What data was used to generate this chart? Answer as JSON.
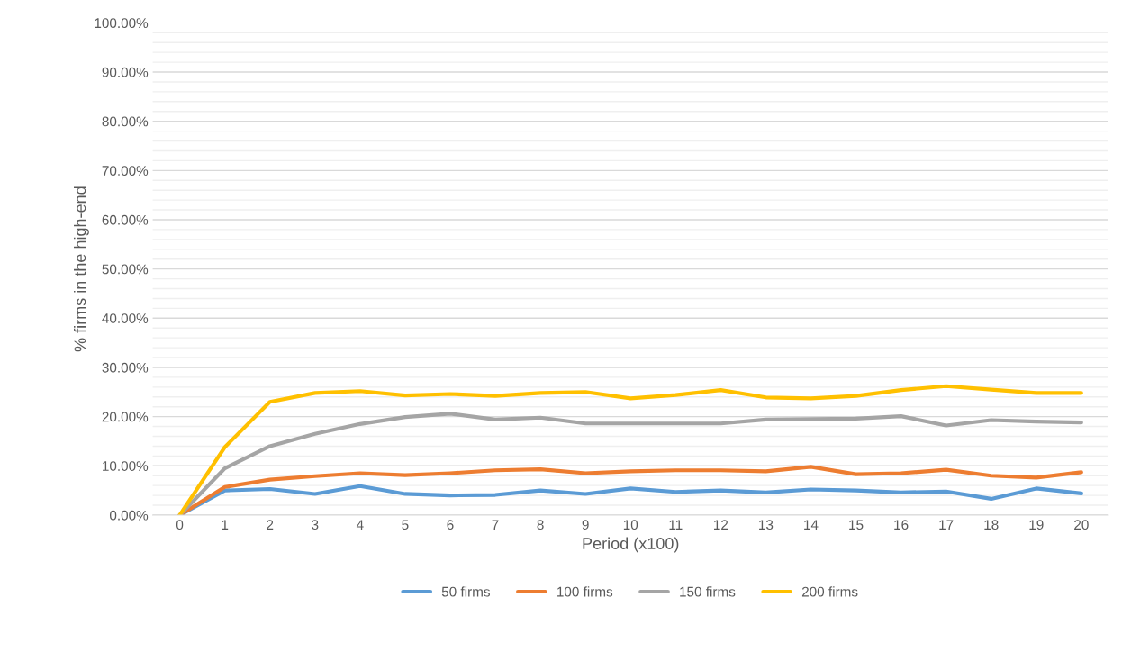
{
  "chart_data": {
    "type": "line",
    "xlabel": "Period (x100)",
    "ylabel": "% firms in the high-end",
    "categories": [
      "0",
      "1",
      "2",
      "3",
      "4",
      "5",
      "6",
      "7",
      "8",
      "9",
      "10",
      "11",
      "12",
      "13",
      "14",
      "15",
      "16",
      "17",
      "18",
      "19",
      "20"
    ],
    "series": [
      {
        "name": "50 firms",
        "color": "#5b9bd5",
        "values": [
          0,
          5.0,
          5.3,
          4.3,
          5.9,
          4.3,
          4.0,
          4.1,
          5.0,
          4.3,
          5.4,
          4.7,
          5.0,
          4.6,
          5.2,
          5.0,
          4.6,
          4.8,
          3.3,
          5.4,
          4.4
        ]
      },
      {
        "name": "100 firms",
        "color": "#ed7d31",
        "values": [
          0,
          5.7,
          7.2,
          7.9,
          8.5,
          8.1,
          8.5,
          9.1,
          9.3,
          8.5,
          8.9,
          9.1,
          9.1,
          8.9,
          9.8,
          8.3,
          8.5,
          9.2,
          8.0,
          7.6,
          8.7
        ]
      },
      {
        "name": "150 firms",
        "color": "#a5a5a5",
        "values": [
          0,
          9.5,
          14.0,
          16.5,
          18.5,
          19.9,
          20.6,
          19.4,
          19.8,
          18.6,
          18.6,
          18.6,
          18.6,
          19.4,
          19.5,
          19.6,
          20.1,
          18.2,
          19.3,
          19.0,
          18.8
        ]
      },
      {
        "name": "200 firms",
        "color": "#ffc000",
        "values": [
          0,
          13.8,
          23.0,
          24.8,
          25.2,
          24.3,
          24.6,
          24.2,
          24.8,
          25.0,
          23.7,
          24.4,
          25.4,
          23.9,
          23.7,
          24.2,
          25.4,
          26.2,
          25.5,
          24.8,
          24.8
        ]
      }
    ],
    "ylim": [
      0,
      100
    ],
    "yticks": [
      {
        "value": 0,
        "label": "0.00%"
      },
      {
        "value": 2,
        "label": null
      },
      {
        "value": 4,
        "label": null
      },
      {
        "value": 6,
        "label": null
      },
      {
        "value": 8,
        "label": null
      },
      {
        "value": 10,
        "label": "10.00%"
      },
      {
        "value": 12,
        "label": null
      },
      {
        "value": 14,
        "label": null
      },
      {
        "value": 16,
        "label": null
      },
      {
        "value": 18,
        "label": null
      },
      {
        "value": 20,
        "label": "20.00%"
      },
      {
        "value": 22,
        "label": null
      },
      {
        "value": 24,
        "label": null
      },
      {
        "value": 26,
        "label": null
      },
      {
        "value": 28,
        "label": null
      },
      {
        "value": 30,
        "label": "30.00%"
      },
      {
        "value": 32,
        "label": null
      },
      {
        "value": 34,
        "label": null
      },
      {
        "value": 36,
        "label": null
      },
      {
        "value": 38,
        "label": null
      },
      {
        "value": 40,
        "label": "40.00%"
      },
      {
        "value": 42,
        "label": null
      },
      {
        "value": 44,
        "label": null
      },
      {
        "value": 46,
        "label": null
      },
      {
        "value": 48,
        "label": null
      },
      {
        "value": 50,
        "label": "50.00%"
      },
      {
        "value": 52,
        "label": null
      },
      {
        "value": 54,
        "label": null
      },
      {
        "value": 56,
        "label": null
      },
      {
        "value": 58,
        "label": null
      },
      {
        "value": 60,
        "label": "60.00%"
      },
      {
        "value": 62,
        "label": null
      },
      {
        "value": 64,
        "label": null
      },
      {
        "value": 66,
        "label": null
      },
      {
        "value": 68,
        "label": null
      },
      {
        "value": 70,
        "label": "70.00%"
      },
      {
        "value": 72,
        "label": null
      },
      {
        "value": 74,
        "label": null
      },
      {
        "value": 76,
        "label": null
      },
      {
        "value": 78,
        "label": null
      },
      {
        "value": 80,
        "label": "80.00%"
      },
      {
        "value": 82,
        "label": null
      },
      {
        "value": 84,
        "label": null
      },
      {
        "value": 86,
        "label": null
      },
      {
        "value": 88,
        "label": null
      },
      {
        "value": 90,
        "label": "90.00%"
      },
      {
        "value": 92,
        "label": null
      },
      {
        "value": 94,
        "label": null
      },
      {
        "value": 96,
        "label": null
      },
      {
        "value": 98,
        "label": null
      },
      {
        "value": 100,
        "label": "100.00%"
      }
    ],
    "grid": "y",
    "legend": "bottom",
    "marker": "none",
    "line_style": "solid"
  }
}
